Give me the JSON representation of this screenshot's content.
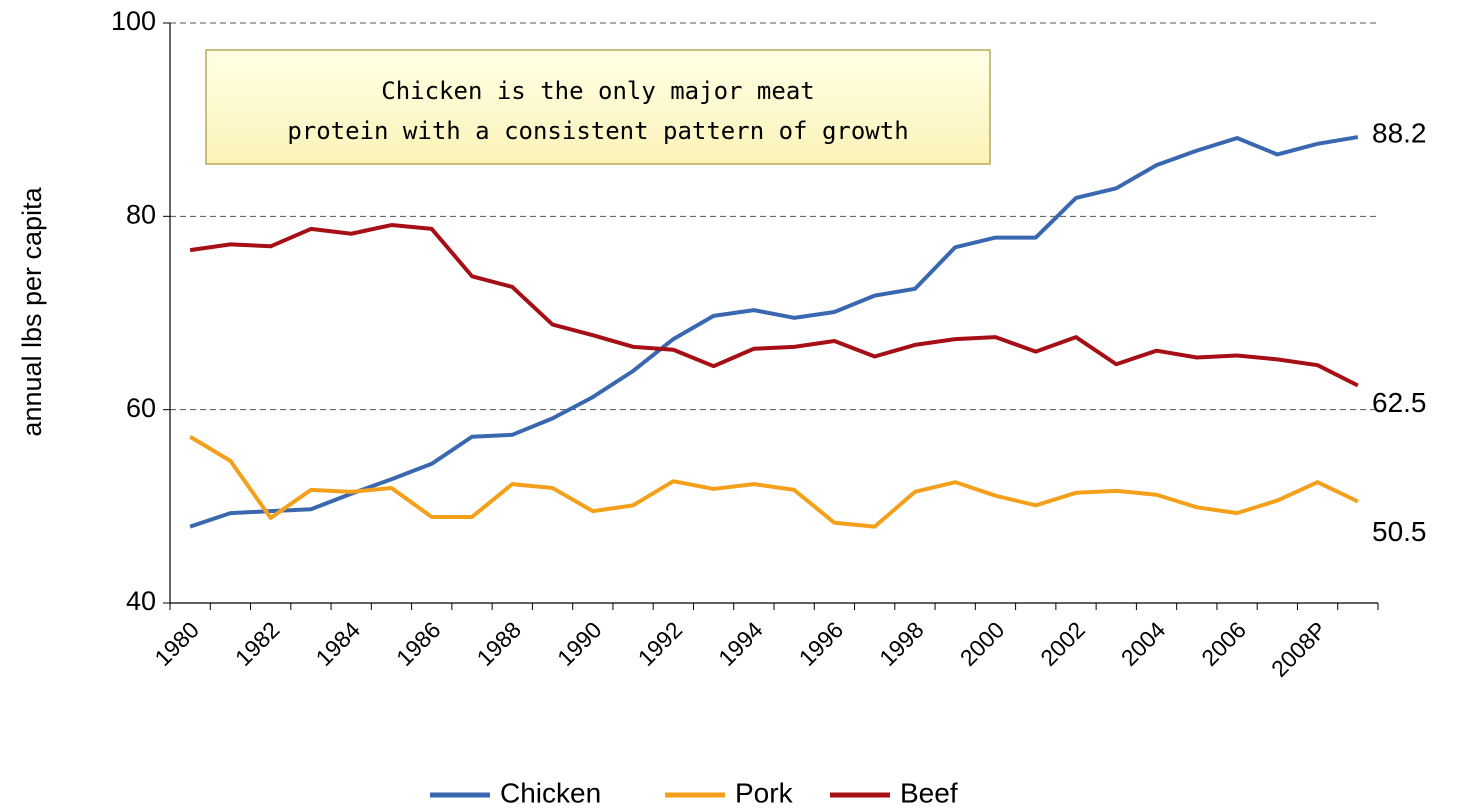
{
  "chart_data": {
    "type": "line",
    "y_label": "annual lbs per capita",
    "annotation": [
      "Chicken is the only major meat",
      "protein with a consistent pattern of growth"
    ],
    "categories": [
      "1980",
      null,
      "1982",
      null,
      "1984",
      null,
      "1986",
      null,
      "1988",
      null,
      "1990",
      null,
      "1992",
      null,
      "1994",
      null,
      "1996",
      null,
      "1998",
      null,
      "2000",
      null,
      "2002",
      null,
      "2004",
      null,
      "2006",
      null,
      "2008P",
      null
    ],
    "series": [
      {
        "name": "Chicken",
        "color": "#3a68b0",
        "values": [
          47.9,
          49.3,
          49.5,
          49.7,
          51.3,
          52.8,
          54.4,
          57.2,
          57.4,
          59.1,
          61.3,
          64.0,
          67.3,
          69.7,
          70.3,
          69.5,
          70.1,
          71.8,
          72.5,
          76.8,
          77.8,
          77.8,
          81.9,
          82.9,
          85.3,
          86.8,
          88.1,
          86.4,
          87.5,
          88.2
        ]
      },
      {
        "name": "Pork",
        "color": "#f5a01a",
        "values": [
          57.2,
          54.7,
          48.8,
          51.7,
          51.5,
          51.9,
          48.9,
          48.9,
          52.3,
          51.9,
          49.5,
          50.1,
          52.6,
          51.8,
          52.3,
          51.7,
          48.3,
          47.9,
          51.5,
          52.5,
          51.1,
          50.1,
          51.4,
          51.6,
          51.2,
          49.9,
          49.3,
          50.6,
          52.5,
          50.5
        ]
      },
      {
        "name": "Beef",
        "color": "#a50f15",
        "values": [
          76.5,
          77.1,
          76.9,
          78.7,
          78.2,
          79.1,
          78.7,
          73.8,
          72.7,
          68.8,
          67.7,
          66.5,
          66.2,
          64.5,
          66.3,
          66.5,
          67.1,
          65.5,
          66.7,
          67.3,
          67.5,
          66.0,
          67.5,
          64.7,
          66.1,
          65.4,
          65.6,
          65.2,
          64.6,
          62.5
        ]
      }
    ],
    "ylim": [
      40,
      100
    ],
    "yticks": [
      40,
      60,
      80,
      100
    ],
    "grid": true,
    "legend": "bottom"
  }
}
